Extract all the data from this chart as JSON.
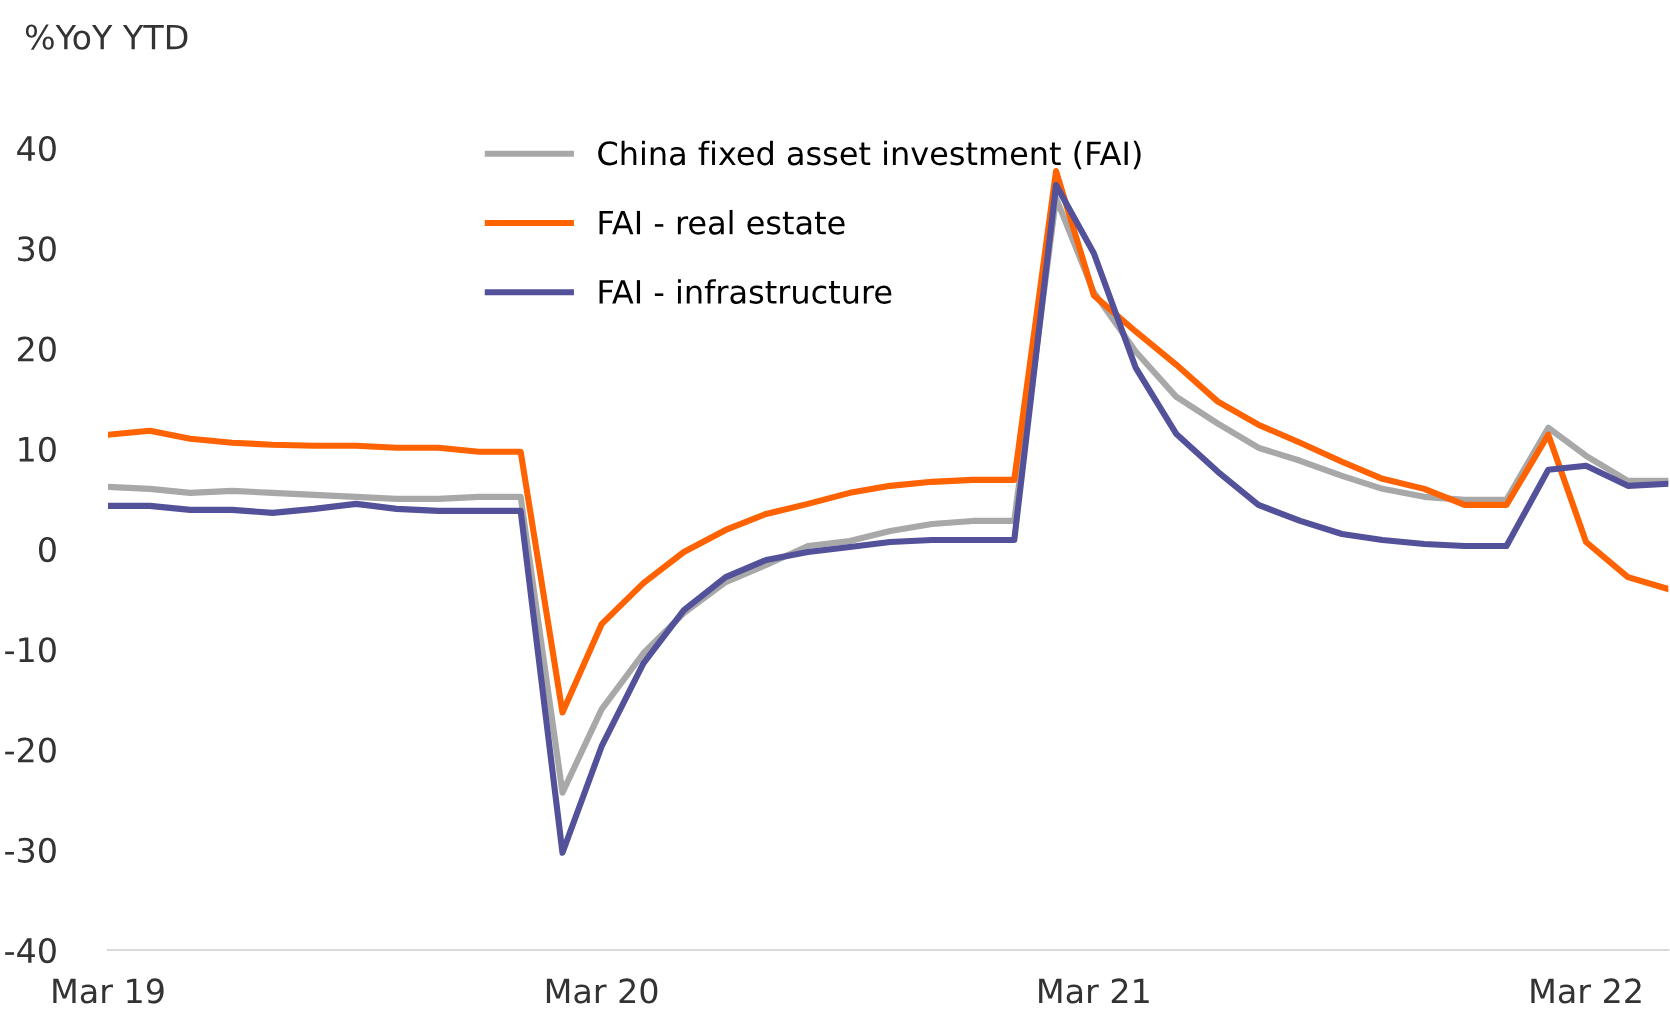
{
  "chart_data": {
    "type": "line",
    "ylabel": "%YoY YTD",
    "x": [
      "2019-03",
      "2019-04",
      "2019-05",
      "2019-06",
      "2019-07",
      "2019-08",
      "2019-09",
      "2019-10",
      "2019-11",
      "2019-12",
      "2020-01",
      "2020-02",
      "2020-03",
      "2020-04",
      "2020-05",
      "2020-06",
      "2020-07",
      "2020-08",
      "2020-09",
      "2020-10",
      "2020-11",
      "2020-12",
      "2021-01",
      "2021-02",
      "2021-03",
      "2021-04",
      "2021-05",
      "2021-06",
      "2021-07",
      "2021-08",
      "2021-09",
      "2021-10",
      "2021-11",
      "2021-12",
      "2022-01",
      "2022-02",
      "2022-03",
      "2022-04",
      "2022-05"
    ],
    "series": [
      {
        "name": "China fixed asset investment (FAI)",
        "color": "#a8a8a8",
        "values": [
          6.2,
          6.0,
          5.6,
          5.8,
          5.6,
          5.4,
          5.2,
          5.0,
          5.0,
          5.2,
          5.2,
          -24.3,
          -16.0,
          -10.4,
          -6.4,
          -3.3,
          -1.6,
          0.3,
          0.8,
          1.8,
          2.5,
          2.8,
          2.8,
          35.0,
          25.6,
          19.7,
          15.2,
          12.5,
          10.1,
          8.8,
          7.3,
          6.0,
          5.2,
          4.9,
          4.9,
          12.1,
          9.3,
          6.8,
          6.8
        ]
      },
      {
        "name": "FAI - real estate",
        "color": "#ff6200",
        "values": [
          11.4,
          11.8,
          11.0,
          10.6,
          10.4,
          10.3,
          10.3,
          10.1,
          10.1,
          9.7,
          9.7,
          -16.3,
          -7.5,
          -3.4,
          -0.3,
          1.9,
          3.5,
          4.5,
          5.6,
          6.3,
          6.7,
          6.9,
          6.9,
          37.7,
          25.3,
          21.7,
          18.4,
          14.7,
          12.4,
          10.6,
          8.7,
          7.0,
          6.0,
          4.4,
          4.4,
          11.4,
          0.7,
          -2.8,
          -4.0
        ]
      },
      {
        "name": "FAI - infrastructure",
        "color": "#525199",
        "values": [
          4.3,
          4.3,
          3.9,
          3.9,
          3.6,
          4.0,
          4.5,
          4.0,
          3.8,
          3.8,
          3.8,
          -30.3,
          -19.7,
          -11.4,
          -6.1,
          -2.8,
          -1.1,
          -0.3,
          0.2,
          0.7,
          0.9,
          0.9,
          0.9,
          36.3,
          29.5,
          18.1,
          11.5,
          7.7,
          4.4,
          2.8,
          1.5,
          0.9,
          0.5,
          0.3,
          0.3,
          7.9,
          8.3,
          6.3,
          6.5
        ]
      }
    ],
    "xlim": [
      "2019-03",
      "2022-05"
    ],
    "xticks": [
      {
        "value": "2019-03",
        "label": "Mar 19"
      },
      {
        "value": "2020-03",
        "label": "Mar 20"
      },
      {
        "value": "2021-03",
        "label": "Mar 21"
      },
      {
        "value": "2022-03",
        "label": "Mar 22"
      }
    ],
    "ylim": [
      -40,
      40
    ],
    "yticks": [
      -40,
      -30,
      -20,
      -10,
      0,
      10,
      20,
      30,
      40
    ],
    "grid": false,
    "legend": "top",
    "marker": "none",
    "line_style": "solid"
  }
}
